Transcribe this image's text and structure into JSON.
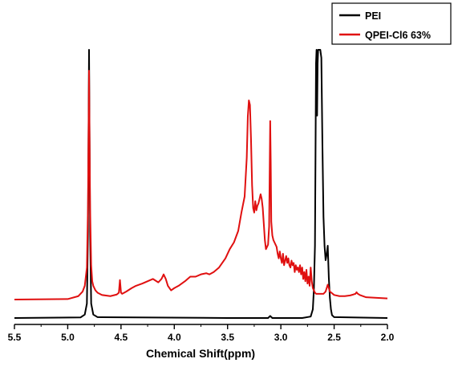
{
  "chart_data": {
    "type": "line",
    "title": "",
    "xlabel": "Chemical Shift(ppm)",
    "ylabel": "",
    "xlim": [
      5.5,
      2.0
    ],
    "x_reversed": true,
    "x_ticks": [
      5.5,
      5.0,
      4.5,
      4.0,
      3.5,
      3.0,
      2.5,
      2.0
    ],
    "x_tick_labels": [
      "5.5",
      "5.0",
      "4.5",
      "4.0",
      "3.5",
      "3.0",
      "2.5",
      "2.0"
    ],
    "ylim": [
      0,
      100
    ],
    "y_ticks_shown": false,
    "grid": false,
    "legend_position": "top-right",
    "series": [
      {
        "name": "PEI",
        "color": "#000000",
        "x": [
          5.5,
          4.88,
          4.84,
          4.82,
          4.81,
          4.8,
          4.79,
          4.78,
          4.76,
          4.72,
          3.5,
          3.12,
          3.1,
          3.08,
          2.8,
          2.72,
          2.7,
          2.69,
          2.68,
          2.675,
          2.67,
          2.665,
          2.66,
          2.655,
          2.65,
          2.645,
          2.64,
          2.635,
          2.63,
          2.62,
          2.61,
          2.6,
          2.59,
          2.58,
          2.57,
          2.56,
          2.55,
          2.54,
          2.53,
          2.52,
          2.5,
          2.0
        ],
        "y": [
          0,
          0.2,
          1.2,
          5,
          30,
          100,
          30,
          5,
          1.2,
          0.3,
          0,
          0,
          0.7,
          0,
          0,
          0.5,
          3,
          10,
          25,
          55,
          88,
          100,
          70,
          88,
          100,
          100,
          100,
          100,
          100,
          90,
          60,
          35,
          25,
          20,
          22,
          25,
          14,
          7,
          3,
          1,
          0.3,
          0
        ]
      },
      {
        "name": "QPEI-Cl6 63%",
        "color": "#e01010",
        "x": [
          5.5,
          5.0,
          4.9,
          4.86,
          4.84,
          4.82,
          4.81,
          4.8,
          4.79,
          4.78,
          4.77,
          4.76,
          4.74,
          4.72,
          4.68,
          4.6,
          4.54,
          4.52,
          4.51,
          4.5,
          4.49,
          4.47,
          4.45,
          4.4,
          4.36,
          4.3,
          4.25,
          4.2,
          4.15,
          4.12,
          4.1,
          4.08,
          4.06,
          4.03,
          4.0,
          3.96,
          3.9,
          3.85,
          3.8,
          3.75,
          3.7,
          3.67,
          3.63,
          3.58,
          3.52,
          3.48,
          3.44,
          3.4,
          3.37,
          3.34,
          3.32,
          3.31,
          3.3,
          3.29,
          3.28,
          3.27,
          3.26,
          3.25,
          3.24,
          3.23,
          3.22,
          3.21,
          3.2,
          3.19,
          3.18,
          3.17,
          3.16,
          3.15,
          3.14,
          3.12,
          3.11,
          3.1,
          3.095,
          3.09,
          3.08,
          3.07,
          3.06,
          3.05,
          3.04,
          3.03,
          3.02,
          3.01,
          3.0,
          2.99,
          2.98,
          2.97,
          2.96,
          2.95,
          2.94,
          2.93,
          2.92,
          2.91,
          2.9,
          2.89,
          2.88,
          2.87,
          2.86,
          2.85,
          2.84,
          2.83,
          2.82,
          2.81,
          2.8,
          2.79,
          2.78,
          2.77,
          2.76,
          2.75,
          2.74,
          2.73,
          2.72,
          2.71,
          2.7,
          2.69,
          2.68,
          2.67,
          2.66,
          2.65,
          2.64,
          2.63,
          2.62,
          2.61,
          2.6,
          2.58,
          2.56,
          2.54,
          2.5,
          2.45,
          2.4,
          2.35,
          2.32,
          2.3,
          2.29,
          2.28,
          2.26,
          2.2,
          2.0
        ],
        "y": [
          0,
          0.2,
          1.5,
          3.5,
          6,
          14,
          40,
          100,
          40,
          15,
          8,
          6,
          4,
          3,
          2,
          1.5,
          2.2,
          3,
          8.5,
          3,
          2.5,
          3,
          3.5,
          5,
          6,
          7,
          8,
          9,
          7.5,
          9,
          11,
          9,
          6,
          4,
          5,
          6,
          8,
          10,
          10,
          11,
          11.5,
          11,
          12,
          14,
          18,
          22,
          25,
          30,
          38,
          45,
          62,
          80,
          87,
          85,
          70,
          50,
          40,
          38,
          43,
          39,
          41,
          42,
          44,
          46,
          44,
          40,
          33,
          26,
          22,
          24,
          32,
          78,
          60,
          34,
          28,
          26,
          25,
          24,
          23,
          20,
          18,
          21,
          18,
          16,
          20,
          15,
          17,
          19,
          16,
          18,
          15,
          14,
          17,
          15,
          16,
          12,
          15,
          13,
          14,
          12,
          15,
          11,
          14,
          9,
          12,
          8,
          13,
          7,
          10,
          6,
          14,
          8,
          5,
          4,
          3,
          2.5,
          2.5,
          2.5,
          2.5,
          2.5,
          2.5,
          2.5,
          2.5,
          3.5,
          6.5,
          3.5,
          2,
          1.5,
          1.5,
          1.8,
          2.2,
          2.5,
          3.2,
          2.6,
          2,
          1,
          0.5
        ]
      }
    ]
  }
}
